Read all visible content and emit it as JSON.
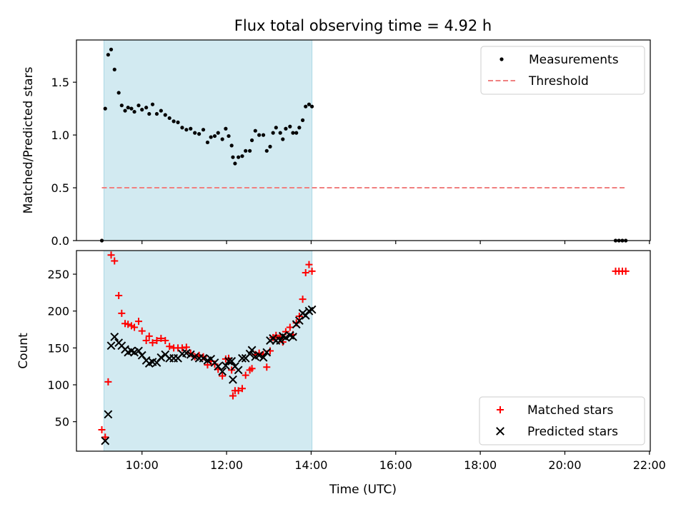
{
  "chart_data": {
    "type": "scatter",
    "title": "Flux total observing time = 4.92 h",
    "xlabel": "Time (UTC)",
    "x_unit": "hours",
    "xlim": [
      8.45,
      22.02
    ],
    "xticks": [
      10,
      12,
      14,
      16,
      18,
      20,
      22
    ],
    "xtick_labels": [
      "10:00",
      "12:00",
      "14:00",
      "16:00",
      "18:00",
      "20:00",
      "22:00"
    ],
    "observing_window": [
      9.1,
      14.02
    ],
    "colors": {
      "window": "#add8e6",
      "measurement": "#000000",
      "threshold": "#f08080",
      "matched": "#ff0000",
      "predicted": "#000000"
    },
    "panels": [
      {
        "id": "ratio",
        "ylabel": "Matched/Predicted stars",
        "ylim": [
          0,
          1.9
        ],
        "yticks": [
          0.0,
          0.5,
          1.0,
          1.5
        ],
        "ytick_labels": [
          "0.0",
          "0.5",
          "1.0",
          "1.5"
        ],
        "legend": {
          "position": "upper right",
          "entries": [
            "Measurements",
            "Threshold"
          ]
        },
        "series": [
          {
            "name": "Measurements",
            "marker": "dot",
            "points": [
              [
                9.05,
                0.0
              ],
              [
                9.13,
                1.25
              ],
              [
                9.2,
                1.76
              ],
              [
                9.27,
                1.81
              ],
              [
                9.35,
                1.62
              ],
              [
                9.45,
                1.4
              ],
              [
                9.52,
                1.28
              ],
              [
                9.6,
                1.23
              ],
              [
                9.67,
                1.26
              ],
              [
                9.75,
                1.25
              ],
              [
                9.82,
                1.22
              ],
              [
                9.92,
                1.28
              ],
              [
                10.0,
                1.24
              ],
              [
                10.1,
                1.26
              ],
              [
                10.17,
                1.2
              ],
              [
                10.25,
                1.29
              ],
              [
                10.35,
                1.2
              ],
              [
                10.45,
                1.23
              ],
              [
                10.55,
                1.19
              ],
              [
                10.65,
                1.16
              ],
              [
                10.75,
                1.13
              ],
              [
                10.85,
                1.12
              ],
              [
                10.95,
                1.07
              ],
              [
                11.05,
                1.05
              ],
              [
                11.15,
                1.06
              ],
              [
                11.25,
                1.02
              ],
              [
                11.35,
                1.01
              ],
              [
                11.45,
                1.05
              ],
              [
                11.55,
                0.93
              ],
              [
                11.63,
                0.98
              ],
              [
                11.72,
                0.99
              ],
              [
                11.8,
                1.02
              ],
              [
                11.9,
                0.96
              ],
              [
                11.98,
                1.06
              ],
              [
                12.05,
                0.99
              ],
              [
                12.12,
                0.9
              ],
              [
                12.15,
                0.79
              ],
              [
                12.2,
                0.73
              ],
              [
                12.28,
                0.79
              ],
              [
                12.37,
                0.8
              ],
              [
                12.45,
                0.85
              ],
              [
                12.55,
                0.85
              ],
              [
                12.6,
                0.95
              ],
              [
                12.68,
                1.04
              ],
              [
                12.77,
                1.0
              ],
              [
                12.87,
                1.0
              ],
              [
                12.95,
                0.85
              ],
              [
                13.03,
                0.89
              ],
              [
                13.1,
                1.02
              ],
              [
                13.17,
                1.07
              ],
              [
                13.27,
                1.02
              ],
              [
                13.33,
                0.96
              ],
              [
                13.4,
                1.06
              ],
              [
                13.5,
                1.08
              ],
              [
                13.57,
                1.02
              ],
              [
                13.65,
                1.02
              ],
              [
                13.72,
                1.07
              ],
              [
                13.8,
                1.14
              ],
              [
                13.87,
                1.27
              ],
              [
                13.95,
                1.29
              ],
              [
                14.02,
                1.27
              ],
              [
                21.2,
                0.0
              ],
              [
                21.28,
                0.0
              ],
              [
                21.36,
                0.0
              ],
              [
                21.44,
                0.0
              ]
            ]
          },
          {
            "name": "Threshold",
            "style": "dashed",
            "points": [
              [
                9.05,
                0.5
              ],
              [
                21.45,
                0.5
              ]
            ]
          }
        ]
      },
      {
        "id": "count",
        "ylabel": "Count",
        "ylim": [
          10,
          282
        ],
        "yticks": [
          50,
          100,
          150,
          200,
          250
        ],
        "ytick_labels": [
          "50",
          "100",
          "150",
          "200",
          "250"
        ],
        "legend": {
          "position": "lower right",
          "entries": [
            "Matched stars",
            "Predicted stars"
          ]
        },
        "series": [
          {
            "name": "Matched stars",
            "marker": "plus",
            "points": [
              [
                9.05,
                39
              ],
              [
                9.13,
                29
              ],
              [
                9.2,
                104
              ],
              [
                9.27,
                276
              ],
              [
                9.35,
                268
              ],
              [
                9.45,
                221
              ],
              [
                9.52,
                197
              ],
              [
                9.6,
                183
              ],
              [
                9.67,
                182
              ],
              [
                9.75,
                180
              ],
              [
                9.82,
                178
              ],
              [
                9.92,
                186
              ],
              [
                10.0,
                173
              ],
              [
                10.1,
                160
              ],
              [
                10.17,
                166
              ],
              [
                10.25,
                157
              ],
              [
                10.35,
                160
              ],
              [
                10.45,
                163
              ],
              [
                10.55,
                160
              ],
              [
                10.65,
                152
              ],
              [
                10.75,
                150
              ],
              [
                10.85,
                150
              ],
              [
                10.95,
                150
              ],
              [
                11.05,
                151
              ],
              [
                11.15,
                143
              ],
              [
                11.25,
                138
              ],
              [
                11.35,
                140
              ],
              [
                11.45,
                138
              ],
              [
                11.55,
                127
              ],
              [
                11.63,
                132
              ],
              [
                11.72,
                128
              ],
              [
                11.8,
                121
              ],
              [
                11.9,
                112
              ],
              [
                11.98,
                135
              ],
              [
                12.05,
                136
              ],
              [
                12.12,
                120
              ],
              [
                12.15,
                85
              ],
              [
                12.2,
                92
              ],
              [
                12.28,
                92
              ],
              [
                12.37,
                95
              ],
              [
                12.45,
                113
              ],
              [
                12.55,
                120
              ],
              [
                12.6,
                122
              ],
              [
                12.68,
                141
              ],
              [
                12.77,
                143
              ],
              [
                12.87,
                141
              ],
              [
                12.95,
                124
              ],
              [
                13.03,
                146
              ],
              [
                13.1,
                164
              ],
              [
                13.17,
                167
              ],
              [
                13.27,
                165
              ],
              [
                13.33,
                158
              ],
              [
                13.4,
                172
              ],
              [
                13.5,
                178
              ],
              [
                13.57,
                168
              ],
              [
                13.65,
                184
              ],
              [
                13.72,
                193
              ],
              [
                13.8,
                216
              ],
              [
                13.87,
                252
              ],
              [
                13.95,
                263
              ],
              [
                14.02,
                254
              ],
              [
                21.2,
                254
              ],
              [
                21.28,
                254
              ],
              [
                21.36,
                254
              ],
              [
                21.44,
                254
              ]
            ]
          },
          {
            "name": "Predicted stars",
            "marker": "cross",
            "points": [
              [
                9.13,
                24
              ],
              [
                9.2,
                60
              ],
              [
                9.27,
                153
              ],
              [
                9.35,
                165
              ],
              [
                9.45,
                157
              ],
              [
                9.52,
                153
              ],
              [
                9.6,
                148
              ],
              [
                9.67,
                144
              ],
              [
                9.75,
                146
              ],
              [
                9.82,
                144
              ],
              [
                9.92,
                146
              ],
              [
                10.0,
                140
              ],
              [
                10.1,
                133
              ],
              [
                10.17,
                129
              ],
              [
                10.25,
                131
              ],
              [
                10.35,
                130
              ],
              [
                10.45,
                137
              ],
              [
                10.55,
                141
              ],
              [
                10.65,
                136
              ],
              [
                10.75,
                136
              ],
              [
                10.85,
                136
              ],
              [
                10.95,
                142
              ],
              [
                11.05,
                143
              ],
              [
                11.15,
                141
              ],
              [
                11.25,
                138
              ],
              [
                11.35,
                136
              ],
              [
                11.45,
                136
              ],
              [
                11.55,
                133
              ],
              [
                11.63,
                135
              ],
              [
                11.72,
                130
              ],
              [
                11.8,
                125
              ],
              [
                11.9,
                118
              ],
              [
                11.98,
                126
              ],
              [
                12.05,
                132
              ],
              [
                12.12,
                132
              ],
              [
                12.15,
                107
              ],
              [
                12.2,
                125
              ],
              [
                12.28,
                120
              ],
              [
                12.37,
                136
              ],
              [
                12.45,
                136
              ],
              [
                12.55,
                142
              ],
              [
                12.6,
                147
              ],
              [
                12.68,
                138
              ],
              [
                12.77,
                140
              ],
              [
                12.87,
                137
              ],
              [
                12.95,
                144
              ],
              [
                13.03,
                160
              ],
              [
                13.1,
                163
              ],
              [
                13.17,
                160
              ],
              [
                13.27,
                160
              ],
              [
                13.33,
                166
              ],
              [
                13.4,
                164
              ],
              [
                13.5,
                167
              ],
              [
                13.57,
                165
              ],
              [
                13.65,
                182
              ],
              [
                13.72,
                187
              ],
              [
                13.8,
                197
              ],
              [
                13.87,
                194
              ],
              [
                13.95,
                200
              ],
              [
                14.02,
                202
              ]
            ]
          }
        ]
      }
    ]
  }
}
